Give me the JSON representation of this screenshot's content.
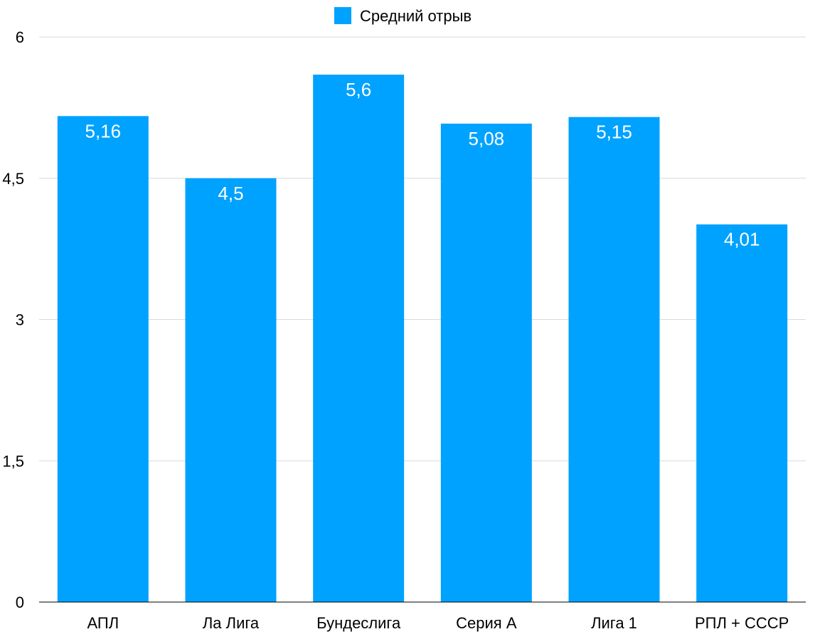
{
  "chart_data": {
    "type": "bar",
    "categories": [
      "АПЛ",
      "Ла Лига",
      "Бундеслига",
      "Серия А",
      "Лига 1",
      "РПЛ + СССР"
    ],
    "series": [
      {
        "name": "Средний отрыв",
        "values": [
          5.16,
          4.5,
          5.6,
          5.08,
          5.15,
          4.01
        ],
        "labels": [
          "5,16",
          "4,5",
          "5,6",
          "5,08",
          "5,15",
          "4,01"
        ]
      }
    ],
    "yticks": [
      0,
      1.5,
      3,
      4.5,
      6
    ],
    "ytick_labels": [
      "0",
      "1,5",
      "3",
      "4,5",
      "6"
    ],
    "ylim": [
      0,
      6
    ],
    "grid": true,
    "legend": "top-center",
    "colors": {
      "bar": "#00a2ff",
      "grid": "#d9d9d9",
      "axis": "#000000"
    }
  }
}
